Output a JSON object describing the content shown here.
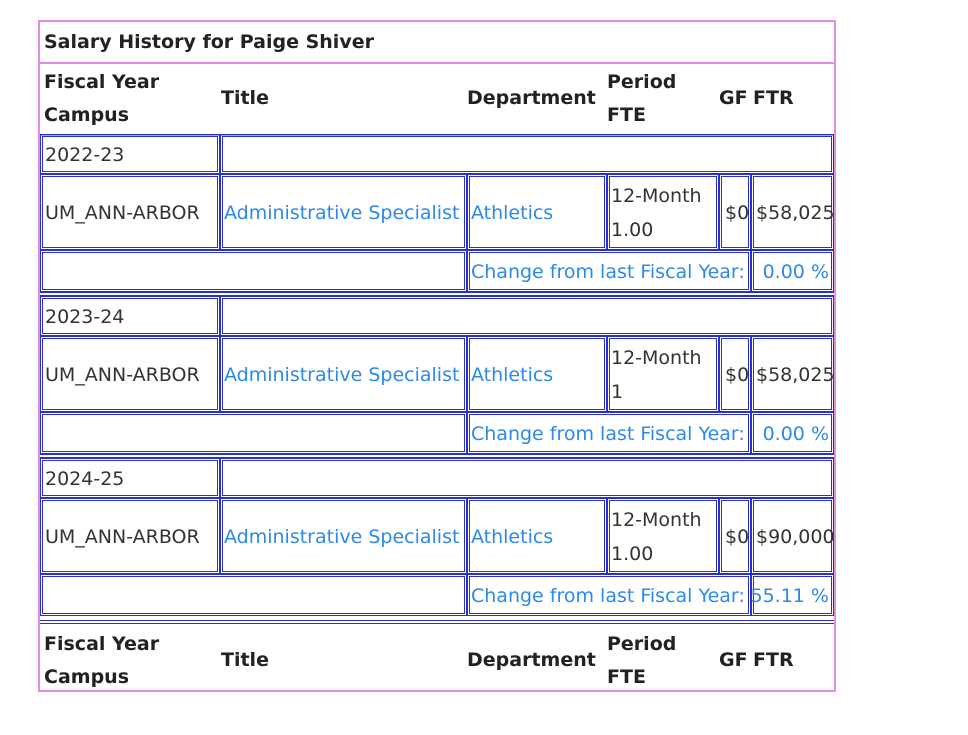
{
  "table": {
    "title": "Salary History for Paige Shiver",
    "headers": {
      "fiscal_year": "Fiscal Year",
      "campus": "Campus",
      "title": "Title",
      "department": "Department",
      "period": "Period",
      "fte": "FTE",
      "gf": "GF",
      "ftr": "FTR"
    },
    "years": [
      {
        "fiscal_year": "2022-23",
        "campus": "UM_ANN-ARBOR",
        "title": "Administrative Specialist",
        "department": "Athletics",
        "period": "12-Month",
        "fte": "1.00",
        "gf": "$0",
        "ftr": "$58,025",
        "change_label": "Change from last Fiscal Year:",
        "change_value": "0.00 %"
      },
      {
        "fiscal_year": "2023-24",
        "campus": "UM_ANN-ARBOR",
        "title": "Administrative Specialist",
        "department": "Athletics",
        "period": "12-Month",
        "fte": "1",
        "gf": "$0",
        "ftr": "$58,025",
        "change_label": "Change from last Fiscal Year:",
        "change_value": "0.00 %"
      },
      {
        "fiscal_year": "2024-25",
        "campus": "UM_ANN-ARBOR",
        "title": "Administrative Specialist",
        "department": "Athletics",
        "period": "12-Month",
        "fte": "1.00",
        "gf": "$0",
        "ftr": "$90,000",
        "change_label": "Change from last Fiscal Year:",
        "change_value": "55.11 %"
      }
    ]
  },
  "colors": {
    "outer_border": "#e48ce4",
    "cell_outline": "#2a31c9",
    "link": "#2d89e8",
    "text": "#222222"
  }
}
